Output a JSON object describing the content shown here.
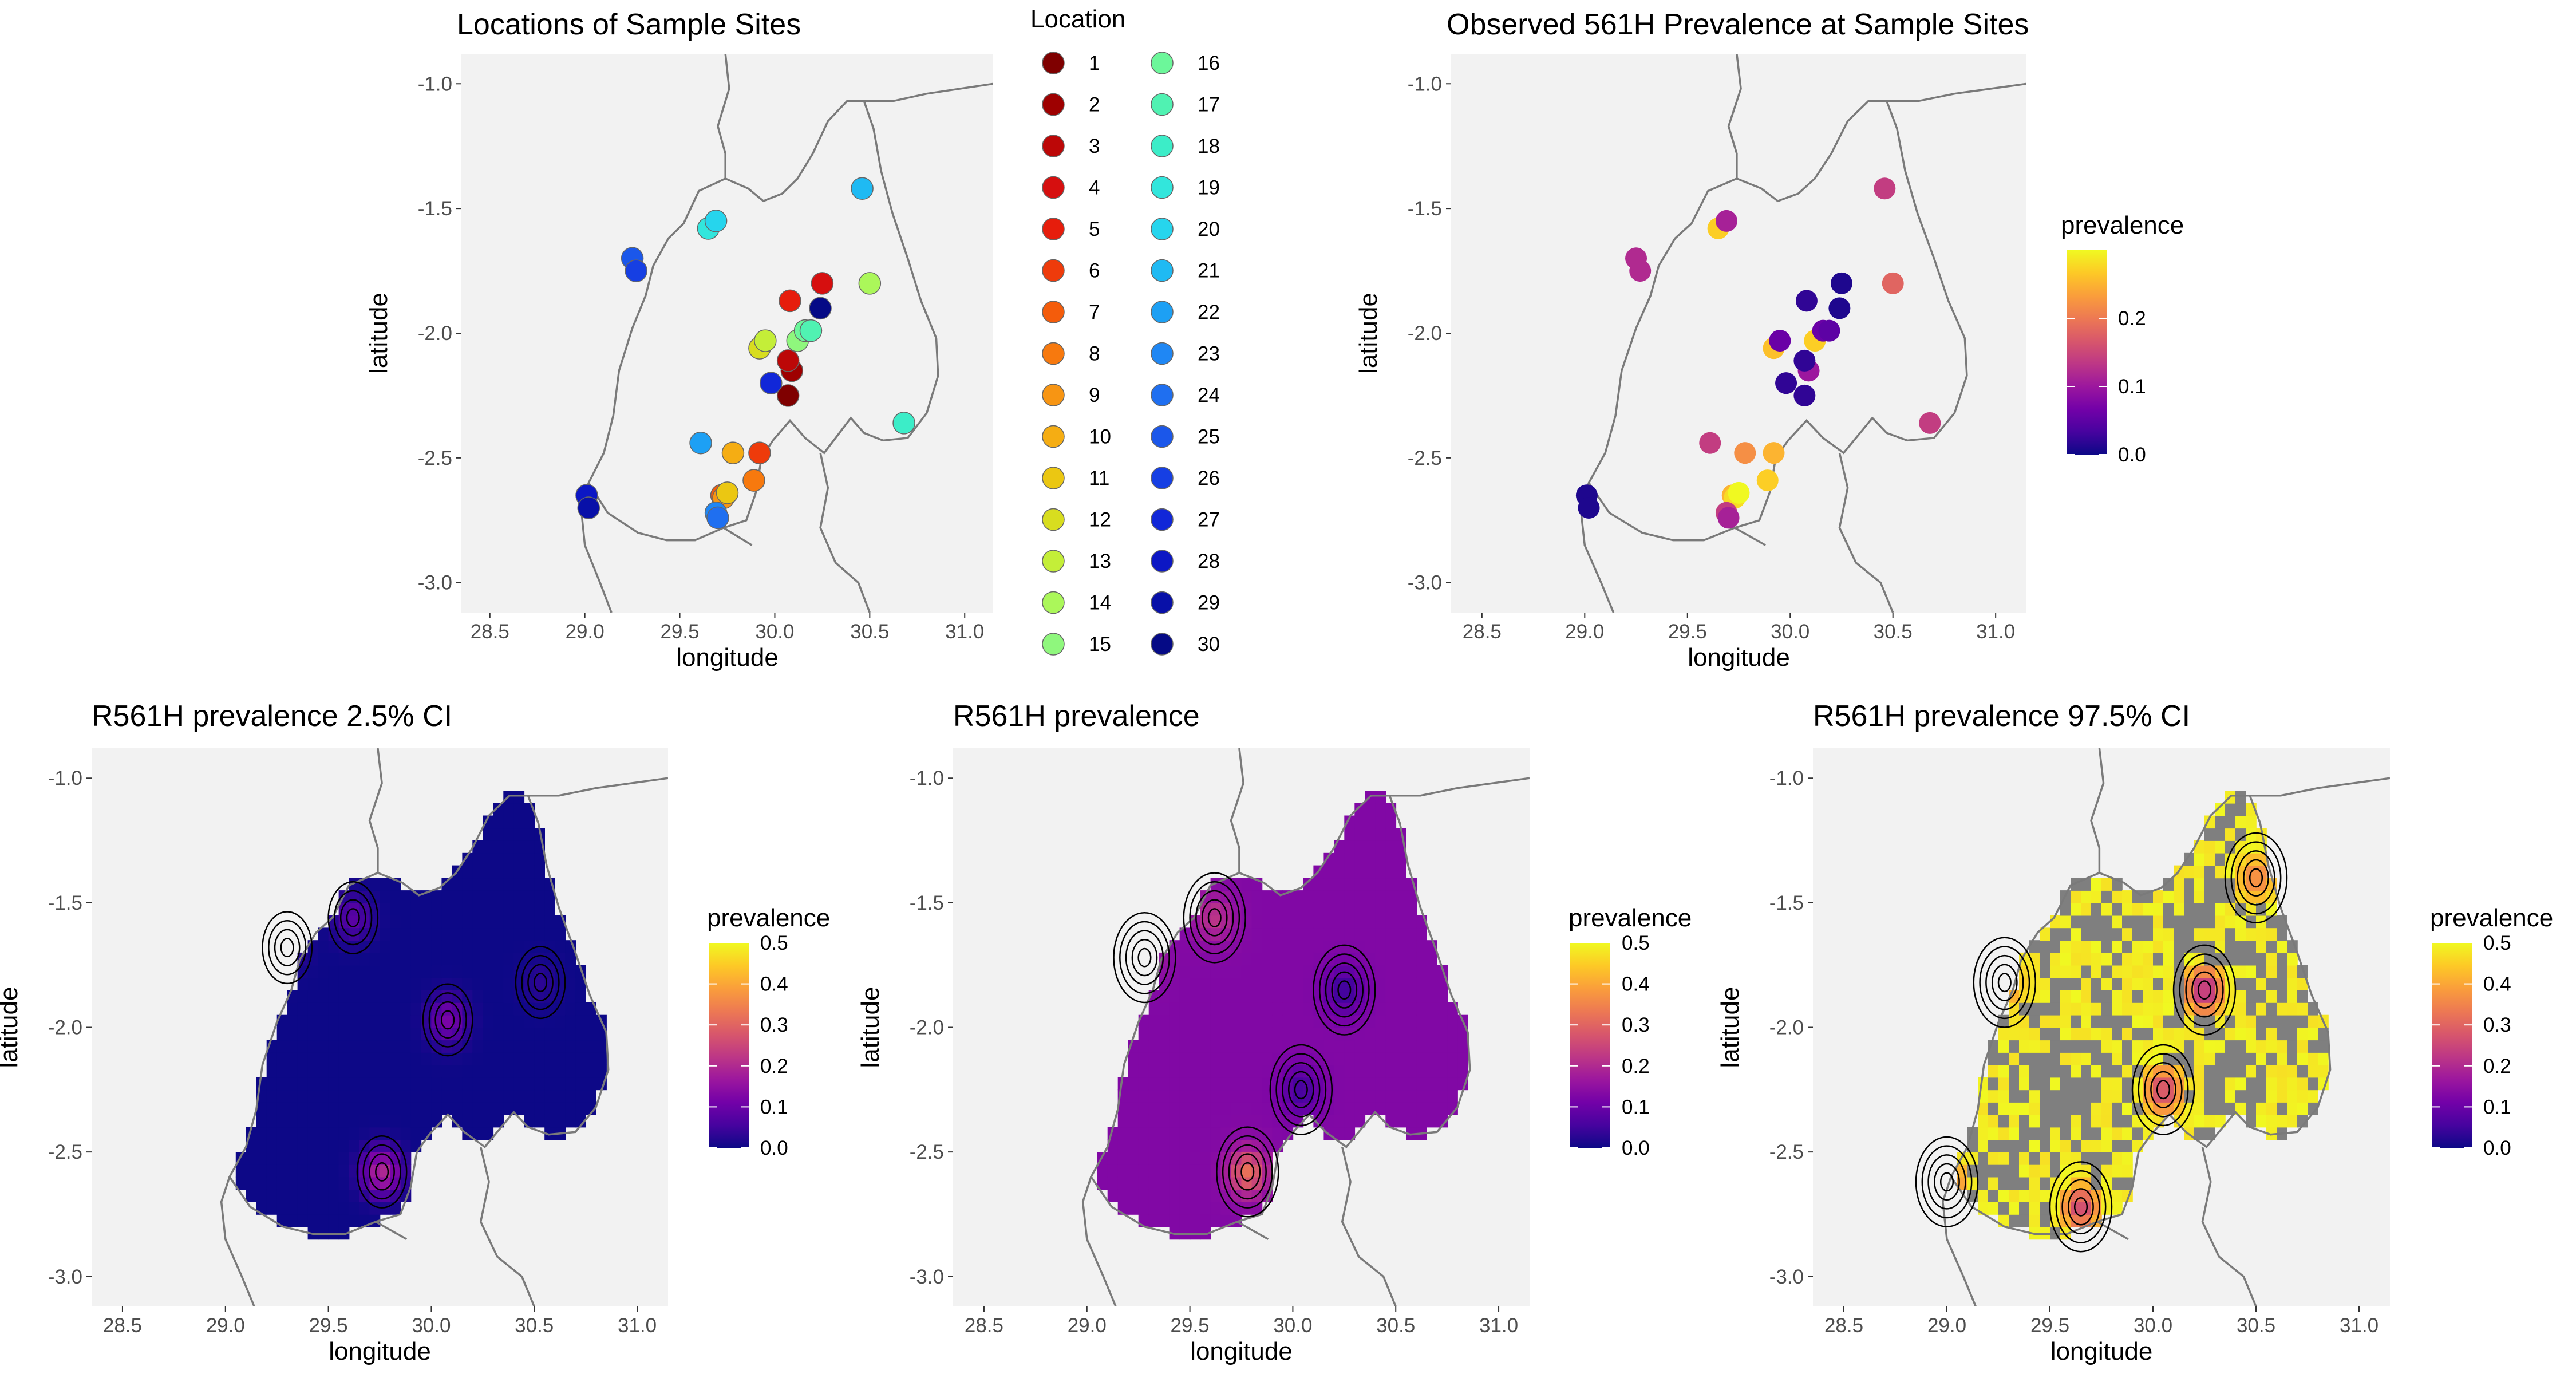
{
  "palette": {
    "panel_bg": "#f2f2f2",
    "border_line": "#7a7a7a",
    "missing_cell": "#7f7f7f",
    "site_colors": [
      "#7f0000",
      "#9e0000",
      "#bc0707",
      "#d60f0f",
      "#e61d0c",
      "#ee3b0b",
      "#f45c0b",
      "#f7790e",
      "#f79513",
      "#f5ad13",
      "#ebc712",
      "#d8dd1f",
      "#c4ee38",
      "#abf75a",
      "#8ff77d",
      "#6cf79a",
      "#50f2b2",
      "#3cedc8",
      "#32e6dc",
      "#26d5ed",
      "#1fbaf3",
      "#1da0f4",
      "#1f87f4",
      "#1f6ff0",
      "#1b57ea",
      "#163fe3",
      "#1127d8",
      "#0c17c4",
      "#0810a8",
      "#050a86"
    ],
    "plasma": [
      "#0d0887",
      "#47039f",
      "#7301a8",
      "#9c179e",
      "#bd3786",
      "#d8576b",
      "#ed7953",
      "#fa9e3b",
      "#fdc926",
      "#f0f921"
    ]
  },
  "map_axes": {
    "xlabel": "longitude",
    "ylabel": "latitude",
    "xlim": [
      28.35,
      31.15
    ],
    "ylim": [
      -3.12,
      -0.88
    ],
    "xticks": [
      "28.5",
      "29.0",
      "29.5",
      "30.0",
      "30.5",
      "31.0"
    ],
    "yticks": [
      "-1.0",
      "-1.5",
      "-2.0",
      "-2.5",
      "-3.0"
    ]
  },
  "titles": {
    "locations": "Locations of Sample Sites",
    "observed": "Observed 561H Prevalence at Sample Sites",
    "ci_low": "R561H prevalence 2.5% CI",
    "mean": "R561H prevalence",
    "ci_high": "R561H prevalence 97.5% CI"
  },
  "legends": {
    "location_title": "Location",
    "prevalence_title": "prevalence",
    "observed_ticks": [
      "0.2",
      "0.1",
      "0.0"
    ],
    "surface_ticks": [
      "0.5",
      "0.4",
      "0.3",
      "0.2",
      "0.1",
      "0.0"
    ]
  },
  "chart_data": [
    {
      "type": "scatter",
      "title": "Locations of Sample Sites",
      "xlabel": "longitude",
      "ylabel": "latitude",
      "xlim": [
        28.35,
        31.15
      ],
      "ylim": [
        -3.12,
        -0.88
      ],
      "legend": "Location",
      "sites": [
        {
          "id": 1,
          "lon": 30.07,
          "lat": -2.25,
          "prevalence": 0.02
        },
        {
          "id": 2,
          "lon": 30.09,
          "lat": -2.15,
          "prevalence": 0.1
        },
        {
          "id": 3,
          "lon": 30.07,
          "lat": -2.11,
          "prevalence": 0.02
        },
        {
          "id": 4,
          "lon": 30.25,
          "lat": -1.8,
          "prevalence": 0.01
        },
        {
          "id": 5,
          "lon": 30.08,
          "lat": -1.87,
          "prevalence": 0.02
        },
        {
          "id": 6,
          "lon": 29.92,
          "lat": -2.48,
          "prevalence": 0.25
        },
        {
          "id": 7,
          "lon": 29.72,
          "lat": -2.65,
          "prevalence": 0.25
        },
        {
          "id": 8,
          "lon": 29.89,
          "lat": -2.59,
          "prevalence": 0.27
        },
        {
          "id": 9,
          "lon": 29.73,
          "lat": -2.66,
          "prevalence": 0.28
        },
        {
          "id": 10,
          "lon": 29.78,
          "lat": -2.48,
          "prevalence": 0.22
        },
        {
          "id": 11,
          "lon": 29.75,
          "lat": -2.64,
          "prevalence": 0.33
        },
        {
          "id": 12,
          "lon": 29.92,
          "lat": -2.06,
          "prevalence": 0.26
        },
        {
          "id": 13,
          "lon": 29.95,
          "lat": -2.03,
          "prevalence": 0.06
        },
        {
          "id": 14,
          "lon": 30.5,
          "lat": -1.8,
          "prevalence": 0.18
        },
        {
          "id": 15,
          "lon": 30.12,
          "lat": -2.03,
          "prevalence": 0.27
        },
        {
          "id": 16,
          "lon": 30.16,
          "lat": -1.99,
          "prevalence": 0.06
        },
        {
          "id": 17,
          "lon": 30.19,
          "lat": -1.99,
          "prevalence": 0.05
        },
        {
          "id": 18,
          "lon": 30.68,
          "lat": -2.36,
          "prevalence": 0.14
        },
        {
          "id": 19,
          "lon": 29.65,
          "lat": -1.58,
          "prevalence": 0.27
        },
        {
          "id": 20,
          "lon": 29.69,
          "lat": -1.55,
          "prevalence": 0.11
        },
        {
          "id": 21,
          "lon": 30.46,
          "lat": -1.42,
          "prevalence": 0.14
        },
        {
          "id": 22,
          "lon": 29.61,
          "lat": -2.44,
          "prevalence": 0.14
        },
        {
          "id": 23,
          "lon": 29.69,
          "lat": -2.72,
          "prevalence": 0.14
        },
        {
          "id": 24,
          "lon": 29.7,
          "lat": -2.74,
          "prevalence": 0.11
        },
        {
          "id": 25,
          "lon": 29.25,
          "lat": -1.7,
          "prevalence": 0.12
        },
        {
          "id": 26,
          "lon": 29.27,
          "lat": -1.75,
          "prevalence": 0.12
        },
        {
          "id": 27,
          "lon": 29.98,
          "lat": -2.2,
          "prevalence": 0.02
        },
        {
          "id": 28,
          "lon": 29.01,
          "lat": -2.65,
          "prevalence": 0.01
        },
        {
          "id": 29,
          "lon": 29.02,
          "lat": -2.7,
          "prevalence": 0.01
        },
        {
          "id": 30,
          "lon": 30.24,
          "lat": -1.9,
          "prevalence": 0.01
        }
      ]
    },
    {
      "type": "scatter",
      "title": "Observed 561H Prevalence at Sample Sites",
      "xlabel": "longitude",
      "ylabel": "latitude",
      "color_scale": "prevalence",
      "color_range": [
        0.0,
        0.3
      ],
      "note": "same 30 sites, colored by prevalence"
    },
    {
      "type": "heatmap",
      "title": "R561H prevalence 2.5% CI",
      "xlabel": "longitude",
      "ylabel": "latitude",
      "color_scale": "prevalence",
      "color_range": [
        0.0,
        0.5
      ],
      "hotspots": [
        {
          "lon": 29.62,
          "lat": -1.56,
          "peak": 0.08
        },
        {
          "lon": 30.08,
          "lat": -1.97,
          "peak": 0.12
        },
        {
          "lon": 29.76,
          "lat": -2.58,
          "peak": 0.2
        },
        {
          "lon": 29.3,
          "lat": -1.68,
          "peak": 0.05
        },
        {
          "lon": 30.53,
          "lat": -1.82,
          "peak": 0.03
        }
      ]
    },
    {
      "type": "heatmap",
      "title": "R561H prevalence",
      "xlabel": "longitude",
      "ylabel": "latitude",
      "color_scale": "prevalence",
      "color_range": [
        0.0,
        0.5
      ],
      "hotspots": [
        {
          "lon": 29.62,
          "lat": -1.56,
          "peak": 0.22
        },
        {
          "lon": 29.78,
          "lat": -2.58,
          "peak": 0.32
        },
        {
          "lon": 29.28,
          "lat": -1.72,
          "peak": 0.2
        },
        {
          "lon": 30.25,
          "lat": -1.85,
          "peak": 0.04
        },
        {
          "lon": 30.04,
          "lat": -2.25,
          "peak": 0.05
        }
      ]
    },
    {
      "type": "heatmap",
      "title": "R561H prevalence 97.5% CI",
      "xlabel": "longitude",
      "ylabel": "latitude",
      "color_scale": "prevalence",
      "color_range": [
        0.0,
        0.5
      ],
      "hotspots": [
        {
          "lon": 30.25,
          "lat": -1.85,
          "peak": 0.15
        },
        {
          "lon": 30.05,
          "lat": -2.25,
          "peak": 0.2
        },
        {
          "lon": 29.28,
          "lat": -1.82,
          "peak": 0.3
        },
        {
          "lon": 29.65,
          "lat": -2.72,
          "peak": 0.2
        },
        {
          "lon": 30.5,
          "lat": -1.4,
          "peak": 0.3
        },
        {
          "lon": 29.0,
          "lat": -2.62,
          "peak": 0.25
        }
      ]
    }
  ]
}
